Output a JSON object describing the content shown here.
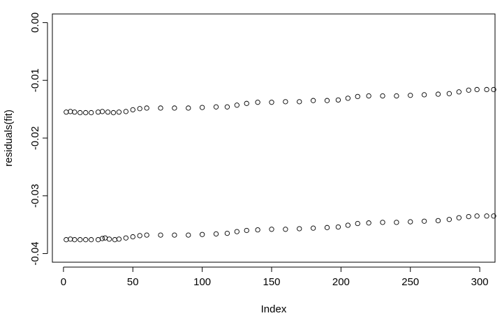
{
  "chart_data": {
    "type": "scatter",
    "title": "",
    "xlabel": "Index",
    "ylabel": "residuals(fit)",
    "xlim": [
      -8,
      311
    ],
    "ylim": [
      -0.0415,
      0.0015
    ],
    "x_ticks": [
      0,
      50,
      100,
      150,
      200,
      250,
      300
    ],
    "x_tick_labels": [
      "0",
      "50",
      "100",
      "150",
      "200",
      "250",
      "300"
    ],
    "y_ticks": [
      0.0,
      -0.01,
      -0.02,
      -0.03,
      -0.04
    ],
    "y_tick_labels": [
      "0.00",
      "-0.01",
      "-0.02",
      "-0.03",
      "-0.04"
    ],
    "grid": false,
    "marker": "open-circle",
    "series": [
      {
        "points": [
          {
            "x": 2,
            "y": -0.0376
          },
          {
            "x": 5,
            "y": -0.0375
          },
          {
            "x": 8,
            "y": -0.0376
          },
          {
            "x": 12,
            "y": -0.0376
          },
          {
            "x": 16,
            "y": -0.0376
          },
          {
            "x": 20,
            "y": -0.0376
          },
          {
            "x": 25,
            "y": -0.0376
          },
          {
            "x": 28,
            "y": -0.0374
          },
          {
            "x": 30,
            "y": -0.0373
          },
          {
            "x": 33,
            "y": -0.0375
          },
          {
            "x": 37,
            "y": -0.0376
          },
          {
            "x": 40,
            "y": -0.0375
          },
          {
            "x": 45,
            "y": -0.0373
          },
          {
            "x": 50,
            "y": -0.0371
          },
          {
            "x": 55,
            "y": -0.0369
          },
          {
            "x": 60,
            "y": -0.0368
          },
          {
            "x": 70,
            "y": -0.0368
          },
          {
            "x": 80,
            "y": -0.0368
          },
          {
            "x": 90,
            "y": -0.0368
          },
          {
            "x": 100,
            "y": -0.0367
          },
          {
            "x": 110,
            "y": -0.0366
          },
          {
            "x": 118,
            "y": -0.0365
          },
          {
            "x": 125,
            "y": -0.0362
          },
          {
            "x": 132,
            "y": -0.036
          },
          {
            "x": 140,
            "y": -0.0359
          },
          {
            "x": 150,
            "y": -0.0358
          },
          {
            "x": 160,
            "y": -0.0358
          },
          {
            "x": 170,
            "y": -0.0357
          },
          {
            "x": 180,
            "y": -0.0356
          },
          {
            "x": 190,
            "y": -0.0355
          },
          {
            "x": 198,
            "y": -0.0354
          },
          {
            "x": 205,
            "y": -0.0351
          },
          {
            "x": 212,
            "y": -0.0348
          },
          {
            "x": 220,
            "y": -0.0347
          },
          {
            "x": 230,
            "y": -0.0346
          },
          {
            "x": 240,
            "y": -0.0346
          },
          {
            "x": 250,
            "y": -0.0345
          },
          {
            "x": 260,
            "y": -0.0344
          },
          {
            "x": 270,
            "y": -0.0343
          },
          {
            "x": 278,
            "y": -0.0341
          },
          {
            "x": 285,
            "y": -0.0338
          },
          {
            "x": 292,
            "y": -0.0336
          },
          {
            "x": 298,
            "y": -0.0335
          },
          {
            "x": 305,
            "y": -0.0335
          },
          {
            "x": 310,
            "y": -0.0335
          }
        ]
      },
      {
        "points": [
          {
            "x": 2,
            "y": -0.0155
          },
          {
            "x": 5,
            "y": -0.0154
          },
          {
            "x": 8,
            "y": -0.0155
          },
          {
            "x": 12,
            "y": -0.0156
          },
          {
            "x": 16,
            "y": -0.0156
          },
          {
            "x": 20,
            "y": -0.0156
          },
          {
            "x": 25,
            "y": -0.0155
          },
          {
            "x": 28,
            "y": -0.0154
          },
          {
            "x": 32,
            "y": -0.0155
          },
          {
            "x": 36,
            "y": -0.0156
          },
          {
            "x": 40,
            "y": -0.0155
          },
          {
            "x": 45,
            "y": -0.0154
          },
          {
            "x": 50,
            "y": -0.0151
          },
          {
            "x": 55,
            "y": -0.0149
          },
          {
            "x": 60,
            "y": -0.0148
          },
          {
            "x": 70,
            "y": -0.0148
          },
          {
            "x": 80,
            "y": -0.0148
          },
          {
            "x": 90,
            "y": -0.0148
          },
          {
            "x": 100,
            "y": -0.0147
          },
          {
            "x": 110,
            "y": -0.0146
          },
          {
            "x": 118,
            "y": -0.0146
          },
          {
            "x": 125,
            "y": -0.0143
          },
          {
            "x": 132,
            "y": -0.014
          },
          {
            "x": 140,
            "y": -0.0138
          },
          {
            "x": 150,
            "y": -0.0138
          },
          {
            "x": 160,
            "y": -0.0137
          },
          {
            "x": 170,
            "y": -0.0137
          },
          {
            "x": 180,
            "y": -0.0135
          },
          {
            "x": 190,
            "y": -0.0135
          },
          {
            "x": 198,
            "y": -0.0134
          },
          {
            "x": 205,
            "y": -0.0131
          },
          {
            "x": 212,
            "y": -0.0128
          },
          {
            "x": 220,
            "y": -0.0127
          },
          {
            "x": 230,
            "y": -0.0127
          },
          {
            "x": 240,
            "y": -0.0127
          },
          {
            "x": 250,
            "y": -0.0126
          },
          {
            "x": 260,
            "y": -0.0125
          },
          {
            "x": 270,
            "y": -0.0124
          },
          {
            "x": 278,
            "y": -0.0123
          },
          {
            "x": 285,
            "y": -0.012
          },
          {
            "x": 292,
            "y": -0.0117
          },
          {
            "x": 298,
            "y": -0.0116
          },
          {
            "x": 305,
            "y": -0.0116
          },
          {
            "x": 310,
            "y": -0.0116
          }
        ]
      }
    ]
  }
}
